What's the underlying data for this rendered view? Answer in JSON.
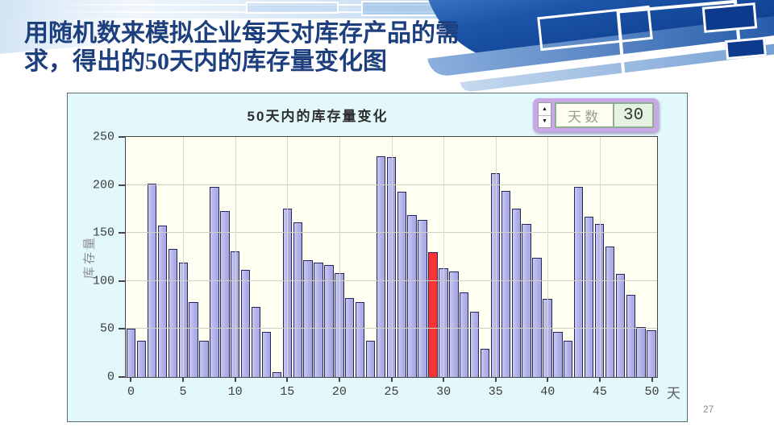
{
  "slide": {
    "title": {
      "line1": "用随机数来模拟企业每天对库存产品的需",
      "line2": "求，得出的50天内的库存量变化图"
    },
    "page_number": "27"
  },
  "chart": {
    "title": "50天内的库存量变化",
    "y_axis_label": "库存量",
    "x_axis_label": "天",
    "spinner": {
      "label": "天数",
      "value": "30",
      "up_glyph": "▲",
      "down_glyph": "▼"
    }
  },
  "chart_data": {
    "type": "bar",
    "title": "50天内的库存量变化",
    "xlabel": "天",
    "ylabel": "库存量",
    "x_start_day": 0,
    "values": [
      50,
      38,
      201,
      158,
      133,
      119,
      78,
      38,
      198,
      173,
      131,
      112,
      73,
      47,
      5,
      175,
      161,
      122,
      119,
      117,
      108,
      82,
      78,
      38,
      230,
      229,
      193,
      169,
      164,
      130,
      113,
      110,
      88,
      68,
      29,
      212,
      194,
      175,
      159,
      124,
      81,
      47,
      38,
      198,
      167,
      159,
      136,
      107,
      86,
      52,
      49
    ],
    "highlight_index": 29,
    "ylim": [
      0,
      250
    ],
    "y_ticks": [
      0,
      50,
      100,
      150,
      200,
      250
    ],
    "x_ticks": [
      0,
      5,
      10,
      15,
      20,
      25,
      30,
      35,
      40,
      45,
      50
    ],
    "grid": true,
    "legend": false,
    "bar_color": "#b1b1e8",
    "highlight_color": "#f83338",
    "bar_border_color": "#26265e",
    "plot_bg_color": "#fffff2",
    "chart_bg_color": "#e2f8fb"
  }
}
